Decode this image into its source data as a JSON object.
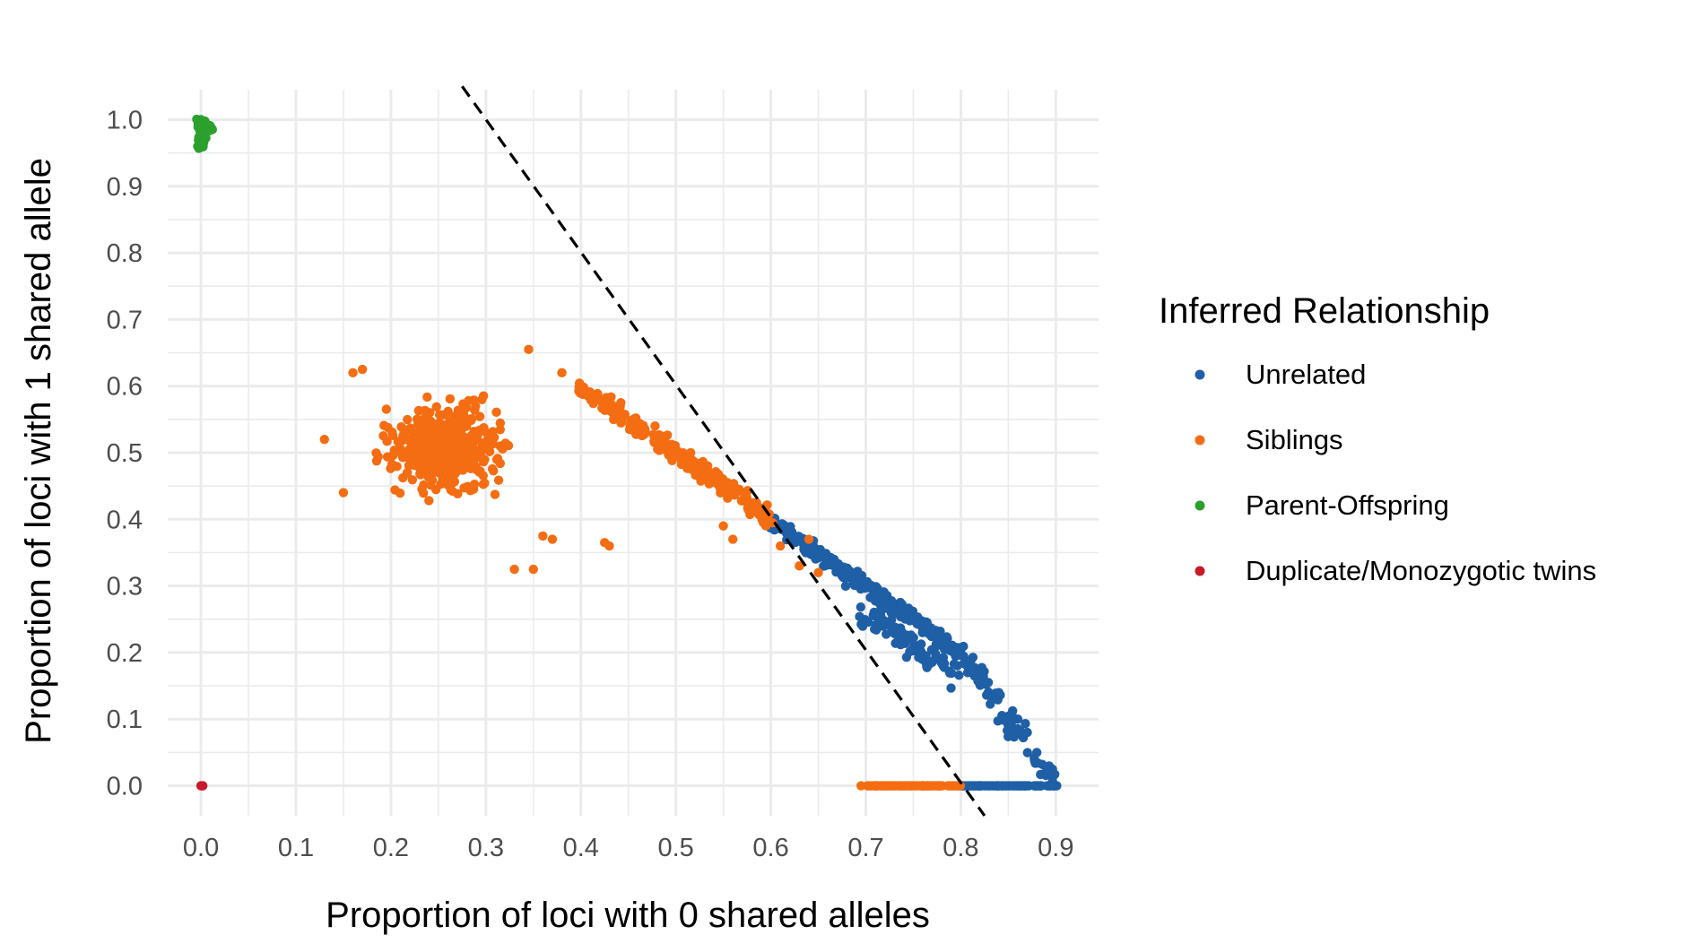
{
  "chart_data": {
    "type": "scatter",
    "title": "",
    "xlabel": "Proportion of loci with 0 shared alleles",
    "ylabel": "Proportion of loci with 1 shared allele",
    "xlim": [
      -0.035,
      0.945
    ],
    "ylim": [
      -0.045,
      1.045
    ],
    "x_ticks": [
      "0.0",
      "0.1",
      "0.2",
      "0.3",
      "0.4",
      "0.5",
      "0.6",
      "0.7",
      "0.8",
      "0.9"
    ],
    "y_ticks": [
      "0.0",
      "0.1",
      "0.2",
      "0.3",
      "0.4",
      "0.5",
      "0.6",
      "0.7",
      "0.8",
      "0.9",
      "1.0"
    ],
    "grid": true,
    "legend": {
      "title": "Inferred Relationship",
      "placement": "right"
    },
    "reference_line": {
      "style": "dashed",
      "color": "#000000",
      "points": [
        [
          0.275,
          1.05
        ],
        [
          0.825,
          -0.045
        ]
      ]
    },
    "series": [
      {
        "name": "Unrelated",
        "color": "#1F5FA6",
        "segments": [
          {
            "from": [
              0.6,
              0.4
            ],
            "to": [
              0.8,
              0.2
            ],
            "count": 260,
            "jitter": 0.008
          },
          {
            "from": [
              0.7,
              0.26
            ],
            "to": [
              0.8,
              0.16
            ],
            "count": 90,
            "jitter": 0.014
          },
          {
            "from": [
              0.8,
              0.2
            ],
            "to": [
              0.9,
              0.0
            ],
            "count": 70,
            "jitter": 0.009
          },
          {
            "from": [
              0.8,
              0.0
            ],
            "to": [
              0.9,
              0.0
            ],
            "count": 120,
            "jitter": 0.0
          }
        ],
        "points": [
          [
            0.62,
            0.37
          ],
          [
            0.64,
            0.365
          ],
          [
            0.84,
            0.14
          ],
          [
            0.86,
            0.1
          ],
          [
            0.87,
            0.08
          ],
          [
            0.88,
            0.05
          ],
          [
            0.89,
            0.02
          ],
          [
            0.9,
            0.0
          ]
        ]
      },
      {
        "name": "Siblings",
        "color": "#F46D12",
        "clusters": [
          {
            "center": [
              0.255,
              0.505
            ],
            "sd": [
              0.047,
              0.055
            ],
            "count": 420
          }
        ],
        "segments": [
          {
            "from": [
              0.4,
              0.6
            ],
            "to": [
              0.6,
              0.4
            ],
            "count": 230,
            "jitter": 0.009
          },
          {
            "from": [
              0.7,
              0.0
            ],
            "to": [
              0.8,
              0.0
            ],
            "count": 110,
            "jitter": 0.0
          }
        ],
        "points": [
          [
            0.345,
            0.655
          ],
          [
            0.38,
            0.62
          ],
          [
            0.425,
            0.365
          ],
          [
            0.43,
            0.36
          ],
          [
            0.35,
            0.325
          ],
          [
            0.33,
            0.325
          ],
          [
            0.36,
            0.375
          ],
          [
            0.37,
            0.37
          ],
          [
            0.13,
            0.52
          ],
          [
            0.15,
            0.44
          ],
          [
            0.17,
            0.625
          ],
          [
            0.16,
            0.62
          ],
          [
            0.61,
            0.36
          ],
          [
            0.63,
            0.33
          ],
          [
            0.65,
            0.32
          ],
          [
            0.695,
            0.0
          ],
          [
            0.64,
            0.37
          ],
          [
            0.56,
            0.37
          ],
          [
            0.55,
            0.39
          ]
        ]
      },
      {
        "name": "Parent-Offspring",
        "color": "#2CA02C",
        "segments": [
          {
            "from": [
              0.0,
              0.96
            ],
            "to": [
              0.0,
              1.0
            ],
            "count": 45,
            "jitter": 0.004
          },
          {
            "from": [
              0.002,
              0.99
            ],
            "to": [
              0.012,
              0.985
            ],
            "count": 15,
            "jitter": 0.004
          }
        ],
        "points": [
          [
            0.0,
            1.0
          ],
          [
            0.005,
            0.995
          ],
          [
            0.01,
            0.99
          ],
          [
            0.012,
            0.985
          ],
          [
            0.002,
            0.96
          ]
        ]
      },
      {
        "name": "Duplicate/Monozygotic twins",
        "color": "#C8182B",
        "points": [
          [
            0.0,
            0.0
          ],
          [
            0.001,
            0.0
          ],
          [
            0.002,
            0.0
          ]
        ]
      }
    ]
  }
}
